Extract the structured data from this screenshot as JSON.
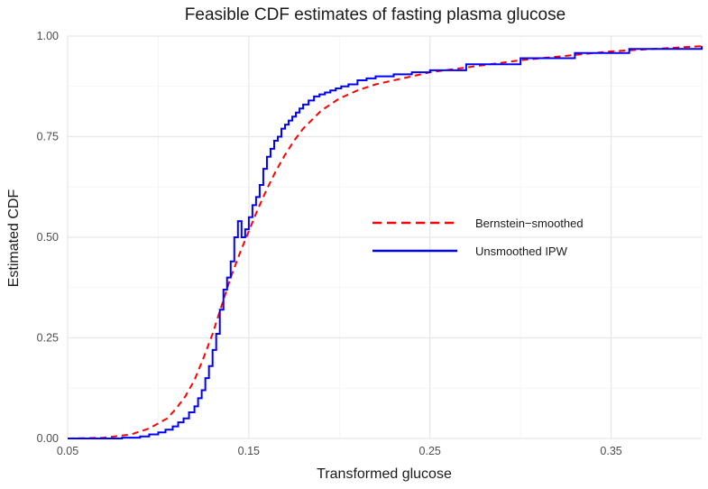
{
  "chart_data": {
    "type": "line",
    "title": "Feasible CDF estimates of fasting plasma glucose",
    "xlabel": "Transformed glucose",
    "ylabel": "Estimated CDF",
    "xlim": [
      0.05,
      0.4
    ],
    "ylim": [
      0,
      1
    ],
    "x_ticks": [
      "0.05",
      "0.15",
      "0.25",
      "0.35"
    ],
    "y_ticks": [
      "0.00",
      "0.25",
      "0.50",
      "0.75",
      "1.00"
    ],
    "grid": true,
    "legend_position": "right",
    "series": [
      {
        "name": "Bernstein−smoothed",
        "color": "#ff0000",
        "style": "dashed",
        "x": [
          0.05,
          0.07,
          0.085,
          0.095,
          0.105,
          0.11,
          0.115,
          0.12,
          0.125,
          0.13,
          0.135,
          0.14,
          0.145,
          0.15,
          0.155,
          0.16,
          0.165,
          0.17,
          0.175,
          0.18,
          0.19,
          0.2,
          0.21,
          0.22,
          0.25,
          0.3,
          0.35,
          0.4
        ],
        "y": [
          0.0,
          0.002,
          0.01,
          0.025,
          0.05,
          0.075,
          0.105,
          0.145,
          0.2,
          0.26,
          0.33,
          0.4,
          0.46,
          0.515,
          0.57,
          0.62,
          0.665,
          0.705,
          0.74,
          0.77,
          0.815,
          0.845,
          0.865,
          0.88,
          0.91,
          0.94,
          0.962,
          0.975
        ]
      },
      {
        "name": "Unsmoothed IPW",
        "color": "#0000ff",
        "style": "step",
        "x": [
          0.05,
          0.08,
          0.09,
          0.095,
          0.1,
          0.104,
          0.108,
          0.111,
          0.114,
          0.117,
          0.12,
          0.122,
          0.124,
          0.126,
          0.128,
          0.13,
          0.132,
          0.134,
          0.136,
          0.138,
          0.14,
          0.142,
          0.144,
          0.146,
          0.148,
          0.15,
          0.152,
          0.154,
          0.156,
          0.158,
          0.16,
          0.162,
          0.164,
          0.166,
          0.168,
          0.17,
          0.172,
          0.174,
          0.176,
          0.178,
          0.18,
          0.183,
          0.186,
          0.189,
          0.192,
          0.195,
          0.198,
          0.201,
          0.205,
          0.21,
          0.215,
          0.22,
          0.23,
          0.24,
          0.25,
          0.27,
          0.3,
          0.33,
          0.36,
          0.4
        ],
        "y": [
          0.0,
          0.002,
          0.005,
          0.01,
          0.015,
          0.022,
          0.03,
          0.04,
          0.05,
          0.065,
          0.08,
          0.1,
          0.12,
          0.15,
          0.18,
          0.22,
          0.26,
          0.32,
          0.37,
          0.4,
          0.44,
          0.5,
          0.54,
          0.5,
          0.52,
          0.55,
          0.58,
          0.6,
          0.63,
          0.67,
          0.7,
          0.72,
          0.74,
          0.75,
          0.77,
          0.78,
          0.79,
          0.8,
          0.81,
          0.82,
          0.83,
          0.84,
          0.85,
          0.855,
          0.86,
          0.865,
          0.87,
          0.875,
          0.88,
          0.89,
          0.895,
          0.9,
          0.905,
          0.91,
          0.915,
          0.93,
          0.945,
          0.958,
          0.968,
          0.975
        ]
      }
    ]
  }
}
